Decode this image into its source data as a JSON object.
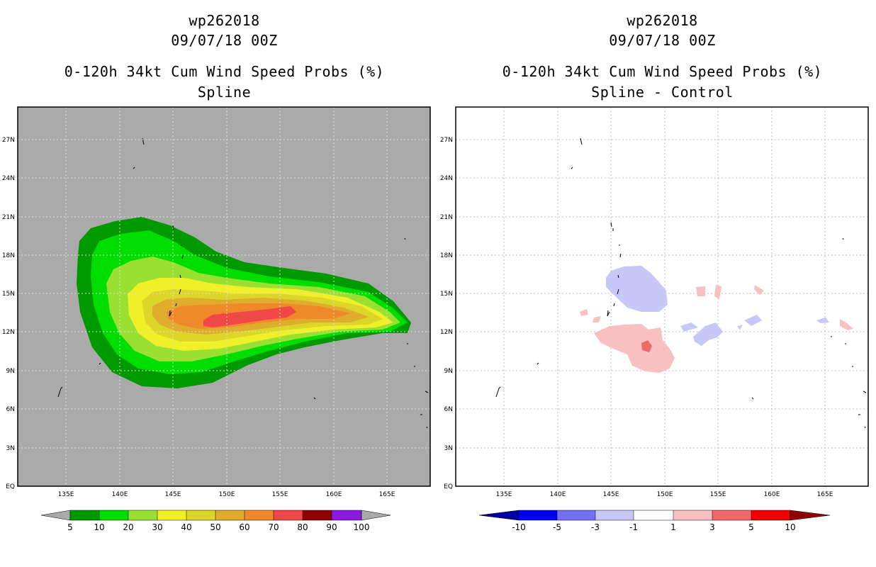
{
  "left_panel": {
    "title_lines": [
      "wp262018",
      "09/07/18 00Z",
      "0-120h 34kt Cum Wind Speed Probs (%)",
      "Spline"
    ],
    "lat_labels": [
      "27N",
      "24N",
      "21N",
      "18N",
      "15N",
      "12N",
      "9N",
      "6N",
      "3N",
      "EQ"
    ],
    "lon_labels": [
      "135E",
      "140E",
      "145E",
      "150E",
      "155E",
      "160E",
      "165E"
    ],
    "background_color": "#aaaaaa",
    "colorbar": {
      "labels": [
        "5",
        "10",
        "20",
        "30",
        "40",
        "50",
        "60",
        "70",
        "80",
        "90",
        "100"
      ],
      "colors": [
        "#009900",
        "#00dd00",
        "#99e033",
        "#f0f028",
        "#dcd628",
        "#e0ac2e",
        "#ee8a2a",
        "#f04848",
        "#8c0000",
        "#8a1ae0"
      ]
    }
  },
  "right_panel": {
    "title_lines": [
      "wp262018",
      "09/07/18 00Z",
      "0-120h 34kt Cum Wind Speed Probs (%)",
      "Spline - Control"
    ],
    "lat_labels": [
      "27N",
      "24N",
      "21N",
      "18N",
      "15N",
      "12N",
      "9N",
      "6N",
      "3N",
      "EQ"
    ],
    "lon_labels": [
      "135E",
      "140E",
      "145E",
      "150E",
      "155E",
      "160E",
      "165E"
    ],
    "colorbar": {
      "labels": [
        "-10",
        "-5",
        "-3",
        "-1",
        "1",
        "3",
        "5",
        "10"
      ],
      "colors": [
        "#0000a0",
        "#0000f0",
        "#7070f0",
        "#c8c8f8",
        "#ffffff",
        "#f8c0c0",
        "#f06868",
        "#f00000",
        "#900000"
      ]
    }
  }
}
